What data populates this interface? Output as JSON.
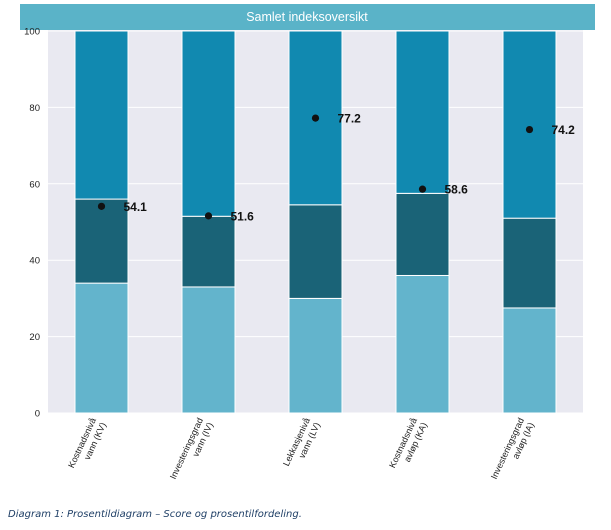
{
  "chart_data": {
    "type": "bar",
    "title": "Samlet indeksoversikt",
    "categories": [
      "Kostnadsnivå vann (KV)",
      "Investeringsgrad vann (IV)",
      "Lekkasjenivå vann (LV)",
      "Kostnadsnivå avløp (KA)",
      "Investeringsgrad avløp (IA)"
    ],
    "category_lines": [
      [
        "Kostnadsnivå",
        "vann (KV)"
      ],
      [
        "Investeringsgrad",
        "vann (IV)"
      ],
      [
        "Lekkasjenivå",
        "vann (LV)"
      ],
      [
        "Kostnadsnivå",
        "avløp (KA)"
      ],
      [
        "Investeringsgrad",
        "avløp (IA)"
      ]
    ],
    "stacked": true,
    "series_segments": [
      {
        "label": "",
        "color": "#63b4cc",
        "values": [
          34,
          33,
          30,
          36,
          27.5
        ]
      },
      {
        "label": "",
        "color": "#1a6377",
        "values": [
          22,
          18.5,
          24.5,
          21.5,
          23.5
        ]
      },
      {
        "label": "",
        "color": "#1189b0",
        "values": [
          44,
          48.5,
          45.5,
          42.5,
          49
        ]
      }
    ],
    "score_points": {
      "values": [
        54.1,
        51.6,
        77.2,
        58.6,
        74.2
      ],
      "labels": [
        "54.1",
        "51.6",
        "77.2",
        "58.6",
        "74.2"
      ],
      "color": "#111111"
    },
    "ylim": [
      0,
      100
    ],
    "yticks": [
      "0",
      "20",
      "40",
      "60",
      "80",
      "100"
    ],
    "grid": true,
    "xlabel": "",
    "ylabel": "",
    "legend": "none",
    "colors": {
      "title_band": "#5ab3c8",
      "plot_background": "#e9e9f1",
      "grid": "#ffffff"
    }
  },
  "caption": "Diagram 1: Prosentildiagram – Score og prosentilfordeling."
}
